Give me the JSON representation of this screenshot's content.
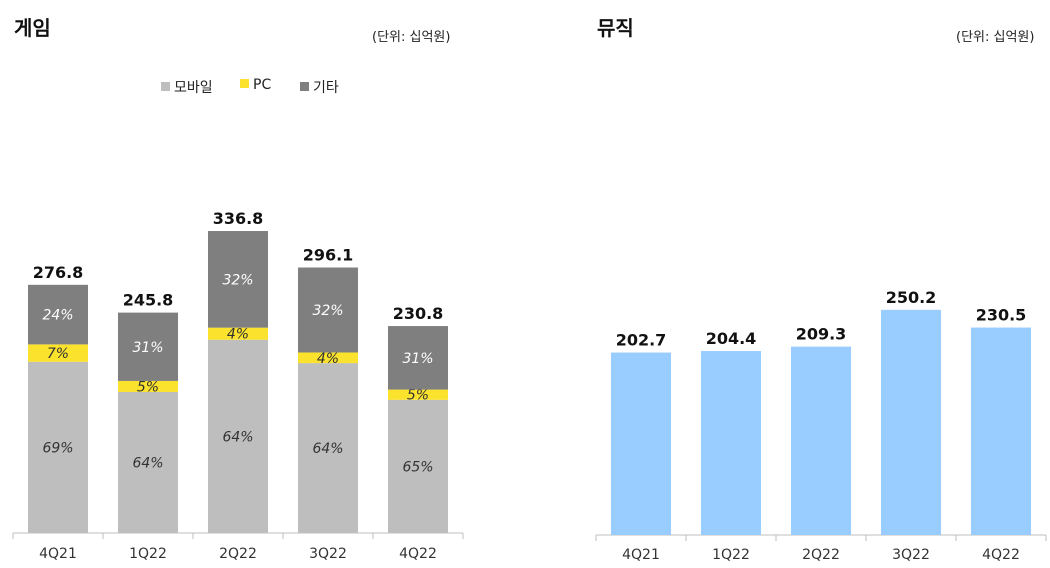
{
  "colors": {
    "mobile": "#bebebe",
    "pc": "#fbe22d",
    "other": "#7f7f7f",
    "music": "#99ccff",
    "axis": "#bfbfbf"
  },
  "game": {
    "title": "게임",
    "unit": "(단위: 십억원)",
    "legend": [
      "모바일",
      "PC",
      "기타"
    ]
  },
  "music": {
    "title": "뮤직",
    "unit": "(단위: 십억원)"
  },
  "chart_data": [
    {
      "type": "bar",
      "stacked": true,
      "title": "게임",
      "unit": "(단위: 십억원)",
      "categories": [
        "4Q21",
        "1Q22",
        "2Q22",
        "3Q22",
        "4Q22"
      ],
      "totals": [
        276.8,
        245.8,
        336.8,
        296.1,
        230.8
      ],
      "total_labels": [
        "276.8",
        "245.8",
        "336.8",
        "296.1",
        "230.8"
      ],
      "series": [
        {
          "name": "모바일",
          "shares": [
            69,
            64,
            64,
            64,
            65
          ],
          "labels": [
            "69%",
            "64%",
            "64%",
            "64%",
            "65%"
          ]
        },
        {
          "name": "PC",
          "shares": [
            7,
            5,
            4,
            4,
            5
          ],
          "labels": [
            "7%",
            "5%",
            "4%",
            "4%",
            "5%"
          ]
        },
        {
          "name": "기타",
          "shares": [
            24,
            31,
            32,
            32,
            31
          ],
          "labels": [
            "24%",
            "31%",
            "32%",
            "32%",
            "31%"
          ]
        }
      ],
      "legend_position": "top"
    },
    {
      "type": "bar",
      "title": "뮤직",
      "unit": "(단위: 십억원)",
      "categories": [
        "4Q21",
        "1Q22",
        "2Q22",
        "3Q22",
        "4Q22"
      ],
      "values": [
        202.7,
        204.4,
        209.3,
        250.2,
        230.5
      ],
      "labels": [
        "202.7",
        "204.4",
        "209.3",
        "250.2",
        "230.5"
      ]
    }
  ]
}
